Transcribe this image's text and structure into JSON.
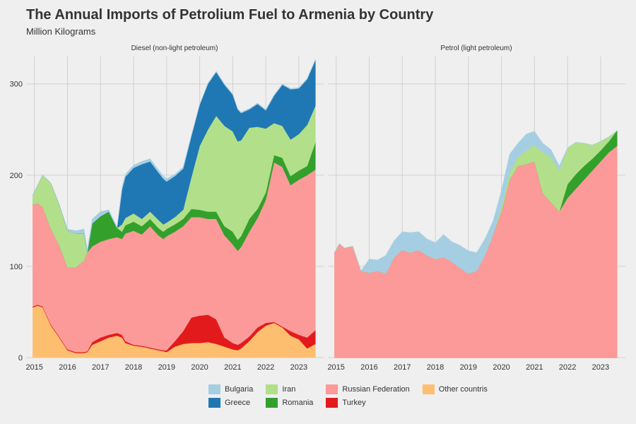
{
  "title": "The Annual Imports of Petrolium Fuel to Armenia by Country",
  "subtitle": "Million Kilograms",
  "colors": {
    "Bulgaria": "#a6cee3",
    "Greece": "#1f78b4",
    "Iran": "#b2df8a",
    "Romania": "#33a02c",
    "Russian Federation": "#fb9a99",
    "Turkey": "#e31a1c",
    "Other countris": "#fdbf6f",
    "grid": "#d0d0d0",
    "background": "#efefef"
  },
  "legend": [
    {
      "label": "Bulgaria",
      "color": "#a6cee3"
    },
    {
      "label": "Iran",
      "color": "#b2df8a"
    },
    {
      "label": "Russian Federation",
      "color": "#fb9a99"
    },
    {
      "label": "Other countris",
      "color": "#fdbf6f"
    },
    {
      "label": "Greece",
      "color": "#1f78b4"
    },
    {
      "label": "Romania",
      "color": "#33a02c"
    },
    {
      "label": "Turkey",
      "color": "#e31a1c"
    }
  ],
  "chart_data": {
    "type": "area",
    "stacked": true,
    "title": "The Annual Imports of Petrolium Fuel to Armenia by Country",
    "subtitle": "Million Kilograms",
    "legend_position": "bottom",
    "grid": true,
    "stack_order_bottom_to_top": [
      "Other countris",
      "Turkey",
      "Russian Federation",
      "Romania",
      "Iran",
      "Greece",
      "Bulgaria"
    ],
    "x_ticks": [
      "2015",
      "2016",
      "2017",
      "2018",
      "2019",
      "2020",
      "2021",
      "2022",
      "2023"
    ],
    "y_ticks": [
      "0",
      "100",
      "200",
      "300"
    ],
    "ylim": [
      0,
      330
    ],
    "xlim": [
      2014.75,
      2023.75
    ],
    "panels": [
      {
        "facet": "Diesel (non-light petroleum)",
        "x": [
          2014.95,
          2015.1,
          2015.25,
          2015.5,
          2015.75,
          2016.0,
          2016.25,
          2016.5,
          2016.6,
          2016.75,
          2017.0,
          2017.25,
          2017.5,
          2017.65,
          2017.75,
          2018.0,
          2018.25,
          2018.5,
          2018.75,
          2018.9,
          2019.0,
          2019.25,
          2019.5,
          2019.75,
          2020.0,
          2020.25,
          2020.5,
          2020.75,
          2021.0,
          2021.15,
          2021.25,
          2021.5,
          2021.75,
          2022.0,
          2022.25,
          2022.5,
          2022.75,
          2023.0,
          2023.25,
          2023.5
        ],
        "series": [
          {
            "name": "Other countris",
            "values": [
              55,
              57,
              55,
              35,
              22,
              8,
              5,
              5,
              6,
              14,
              18,
              22,
              24,
              22,
              16,
              13,
              12,
              10,
              8,
              7,
              6,
              12,
              15,
              16,
              16,
              17,
              15,
              12,
              9,
              8,
              10,
              18,
              28,
              35,
              38,
              33,
              24,
              20,
              10,
              15
            ]
          },
          {
            "name": "Turkey",
            "values": [
              1,
              1,
              1,
              1,
              1,
              1,
              1,
              1,
              1,
              3,
              4,
              3,
              3,
              3,
              2,
              1,
              1,
              1,
              1,
              1,
              2,
              6,
              14,
              28,
              30,
              30,
              27,
              10,
              7,
              6,
              6,
              5,
              5,
              3,
              1,
              1,
              5,
              5,
              12,
              15
            ]
          },
          {
            "name": "Russian Federation",
            "values": [
              112,
              111,
              109,
              105,
              100,
              90,
              93,
              100,
              108,
              105,
              105,
              105,
              105,
              105,
              118,
              125,
              122,
              133,
              125,
              122,
              125,
              120,
              115,
              110,
              108,
              105,
              110,
              112,
              108,
              103,
              105,
              115,
              120,
              135,
              175,
              175,
              160,
              170,
              178,
              176
            ]
          },
          {
            "name": "Romania",
            "values": [
              0,
              0,
              0,
              0,
              0,
              0,
              0,
              0,
              0,
              25,
              28,
              30,
              10,
              8,
              9,
              10,
              9,
              8,
              8,
              8,
              8,
              8,
              8,
              9,
              8,
              8,
              8,
              10,
              14,
              12,
              12,
              14,
              10,
              8,
              8,
              10,
              10,
              10,
              10,
              30
            ]
          },
          {
            "name": "Iran",
            "values": [
              10,
              20,
              35,
              50,
              45,
              40,
              37,
              30,
              0,
              0,
              0,
              0,
              0,
              8,
              8,
              9,
              8,
              8,
              9,
              8,
              7,
              8,
              10,
              35,
              70,
              90,
              105,
              110,
              110,
              108,
              105,
              100,
              90,
              70,
              35,
              35,
              40,
              40,
              45,
              40
            ]
          },
          {
            "name": "Greece",
            "values": [
              0,
              0,
              0,
              0,
              0,
              0,
              0,
              0,
              0,
              0,
              0,
              0,
              0,
              38,
              45,
              50,
              60,
              55,
              52,
              50,
              45,
              45,
              45,
              45,
              45,
              50,
              48,
              45,
              40,
              35,
              30,
              20,
              25,
              20,
              30,
              45,
              55,
              50,
              50,
              50
            ]
          },
          {
            "name": "Bulgaria",
            "values": [
              0,
              0,
              0,
              0,
              0,
              2,
              3,
              5,
              3,
              5,
              5,
              2,
              1,
              3,
              3,
              3,
              3,
              3,
              3,
              3,
              3,
              2,
              2,
              1,
              1,
              1,
              1,
              1,
              1,
              1,
              1,
              1,
              1,
              1,
              1,
              1,
              1,
              1,
              1,
              1
            ]
          }
        ]
      },
      {
        "facet": "Petrol (light petroleum)",
        "x": [
          2014.95,
          2015.1,
          2015.25,
          2015.5,
          2015.75,
          2016.0,
          2016.25,
          2016.5,
          2016.75,
          2017.0,
          2017.25,
          2017.5,
          2017.75,
          2018.0,
          2018.25,
          2018.5,
          2018.75,
          2019.0,
          2019.25,
          2019.5,
          2019.75,
          2020.0,
          2020.25,
          2020.5,
          2020.75,
          2021.0,
          2021.25,
          2021.5,
          2021.75,
          2022.0,
          2022.25,
          2022.5,
          2022.75,
          2023.0,
          2023.25,
          2023.5
        ],
        "series": [
          {
            "name": "Other countris",
            "values": [
              0,
              0,
              0,
              0,
              0,
              0,
              0,
              0,
              0,
              0,
              0,
              0,
              0,
              0,
              0,
              0,
              0,
              0,
              0,
              0,
              0,
              0,
              0,
              0,
              0,
              0,
              0,
              0,
              0,
              0,
              0,
              0,
              0,
              0,
              0,
              0
            ]
          },
          {
            "name": "Turkey",
            "values": [
              0,
              0,
              0,
              0,
              0,
              0,
              0,
              0,
              0,
              0,
              0,
              0,
              0,
              0,
              0,
              0,
              0,
              0,
              0,
              0,
              0,
              0,
              0,
              0,
              0,
              0,
              0,
              0,
              0,
              0,
              0,
              0,
              0,
              0,
              0,
              0
            ]
          },
          {
            "name": "Russian Federation",
            "values": [
              115,
              125,
              120,
              122,
              95,
              93,
              95,
              92,
              110,
              118,
              115,
              118,
              112,
              108,
              110,
              105,
              98,
              92,
              95,
              112,
              135,
              160,
              195,
              210,
              212,
              215,
              180,
              170,
              160,
              175,
              185,
              195,
              205,
              215,
              225,
              232
            ]
          },
          {
            "name": "Romania",
            "values": [
              0,
              0,
              0,
              0,
              0,
              0,
              0,
              0,
              0,
              0,
              0,
              0,
              0,
              0,
              0,
              0,
              0,
              0,
              0,
              0,
              0,
              0,
              0,
              0,
              0,
              0,
              0,
              0,
              0,
              15,
              16,
              15,
              13,
              12,
              12,
              17
            ]
          },
          {
            "name": "Iran",
            "values": [
              0,
              0,
              0,
              0,
              0,
              0,
              0,
              0,
              0,
              0,
              0,
              0,
              0,
              0,
              0,
              0,
              0,
              0,
              0,
              0,
              0,
              5,
              8,
              10,
              15,
              18,
              45,
              50,
              45,
              40,
              35,
              25,
              15,
              10,
              5,
              0
            ]
          },
          {
            "name": "Bulgaria",
            "values": [
              0,
              0,
              0,
              0,
              0,
              15,
              12,
              20,
              18,
              20,
              22,
              20,
              18,
              18,
              25,
              22,
              25,
              25,
              20,
              18,
              15,
              18,
              20,
              15,
              18,
              15,
              10,
              8,
              5,
              0,
              0,
              0,
              0,
              0,
              0,
              0
            ]
          }
        ]
      }
    ]
  }
}
